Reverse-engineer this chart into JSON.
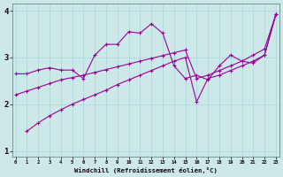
{
  "bg_color": "#cce8e8",
  "line_color": "#990099",
  "grid_color": "#aad8d8",
  "xlabel": "Windchill (Refroidissement éolien,°C)",
  "x_ticks": [
    0,
    1,
    2,
    3,
    4,
    5,
    6,
    7,
    8,
    9,
    10,
    11,
    12,
    13,
    14,
    15,
    16,
    17,
    18,
    19,
    20,
    21,
    22,
    23
  ],
  "y_ticks": [
    1,
    2,
    3,
    4
  ],
  "xlim": [
    -0.3,
    23.3
  ],
  "ylim": [
    0.88,
    4.15
  ],
  "zigzag_x": [
    0,
    1,
    2,
    3,
    4,
    5,
    6,
    7,
    8,
    9,
    10,
    11,
    12,
    13,
    14,
    15,
    16,
    17,
    18,
    19,
    20,
    21,
    22,
    23
  ],
  "zigzag_y": [
    2.65,
    2.65,
    2.73,
    2.78,
    2.73,
    2.73,
    2.55,
    3.05,
    3.28,
    3.28,
    3.55,
    3.52,
    3.72,
    3.52,
    2.82,
    2.55,
    2.62,
    2.52,
    2.82,
    3.05,
    2.92,
    2.88,
    3.05,
    3.92
  ],
  "lower_x": [
    1,
    2,
    3,
    4,
    5,
    6,
    7,
    8,
    9,
    10,
    11,
    12,
    13,
    14,
    15,
    16,
    17,
    18,
    19,
    20,
    21,
    22,
    23
  ],
  "lower_y": [
    1.42,
    1.6,
    1.75,
    1.88,
    2.0,
    2.1,
    2.2,
    2.3,
    2.42,
    2.52,
    2.62,
    2.72,
    2.82,
    2.92,
    3.0,
    2.05,
    2.55,
    2.62,
    2.72,
    2.82,
    2.92,
    3.05,
    3.92
  ],
  "upper_x": [
    0,
    1,
    2,
    3,
    4,
    5,
    6,
    7,
    8,
    9,
    10,
    11,
    12,
    13,
    14,
    15,
    16,
    17,
    18,
    19,
    20,
    21,
    22,
    23
  ],
  "upper_y": [
    2.2,
    2.28,
    2.36,
    2.44,
    2.52,
    2.57,
    2.62,
    2.68,
    2.74,
    2.8,
    2.86,
    2.92,
    2.98,
    3.04,
    3.1,
    3.16,
    2.55,
    2.62,
    2.72,
    2.82,
    2.92,
    3.05,
    3.18,
    3.92
  ]
}
